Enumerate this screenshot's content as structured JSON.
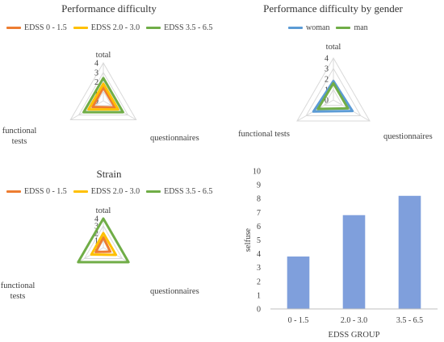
{
  "chart_data": [
    {
      "type": "radar",
      "title": "Performance difficulty",
      "axes": [
        "total",
        "questionnaires",
        "functional tests"
      ],
      "axis_labels": [
        [
          "total"
        ],
        [
          "questionnaires"
        ],
        [
          "functional",
          "tests"
        ]
      ],
      "ticks": [
        "0",
        "1",
        "2",
        "3",
        "4"
      ],
      "rmax": 4,
      "legend_position": "top",
      "series": [
        {
          "name": "EDSS 0 - 1.5",
          "color": "#ED7D31",
          "values": [
            1.4,
            1.4,
            1.3
          ]
        },
        {
          "name": "EDSS 2.0 - 3.0",
          "color": "#FFC000",
          "values": [
            1.8,
            1.8,
            1.8
          ]
        },
        {
          "name": "EDSS 3.5 - 6.5",
          "color": "#70AD47",
          "values": [
            2.4,
            2.4,
            2.4
          ]
        }
      ]
    },
    {
      "type": "radar",
      "title": "Performance difficulty by gender",
      "axes": [
        "total",
        "questionnaires",
        "functional tests"
      ],
      "axis_labels": [
        [
          "total"
        ],
        [
          "questionnaires"
        ],
        [
          "functional tests"
        ]
      ],
      "ticks": [
        "0",
        "1",
        "2",
        "3",
        "4"
      ],
      "rmax": 4,
      "legend_position": "top",
      "series": [
        {
          "name": "woman",
          "color": "#5B9BD5",
          "values": [
            1.8,
            2.1,
            2.2
          ]
        },
        {
          "name": "man",
          "color": "#70AD47",
          "values": [
            1.6,
            1.6,
            1.7
          ]
        }
      ]
    },
    {
      "type": "radar",
      "title": "Strain",
      "axes": [
        "total",
        "questionnaires",
        "functional tests"
      ],
      "axis_labels": [
        [
          "total"
        ],
        [
          "questionnaires"
        ],
        [
          "functional",
          "tests"
        ]
      ],
      "ticks": [
        "0",
        "1",
        "2",
        "3",
        "4"
      ],
      "rmax": 4,
      "legend_position": "top",
      "series": [
        {
          "name": "EDSS 0 - 1.5",
          "color": "#ED7D31",
          "values": [
            1.4,
            1.1,
            1.2
          ]
        },
        {
          "name": "EDSS 2.0 - 3.0",
          "color": "#FFC000",
          "values": [
            2.0,
            2.0,
            1.9
          ]
        },
        {
          "name": "EDSS 3.5 - 6.5",
          "color": "#70AD47",
          "values": [
            4.0,
            4.0,
            4.0
          ]
        }
      ]
    },
    {
      "type": "bar",
      "title": "",
      "categories": [
        "0 - 1.5",
        "2.0 - 3.0",
        "3.5 - 6.5"
      ],
      "values": [
        3.8,
        6.8,
        8.2
      ],
      "xlabel": "EDSS GROUP",
      "ylabel": "selfuse",
      "ylim": [
        0,
        10
      ],
      "yticks": [
        0,
        1,
        2,
        3,
        4,
        5,
        6,
        7,
        8,
        9,
        10
      ],
      "color": "#7F9FDC",
      "grid": false
    }
  ]
}
